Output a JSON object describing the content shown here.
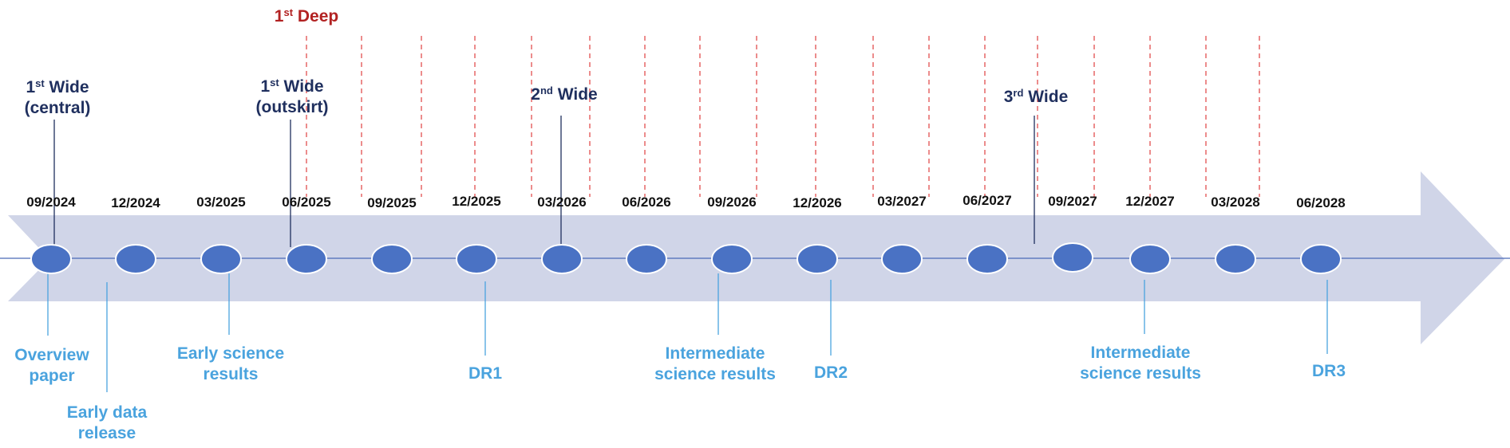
{
  "dates": [
    "09/2024",
    "12/2024",
    "03/2025",
    "06/2025",
    "09/2025",
    "12/2025",
    "03/2026",
    "06/2026",
    "09/2026",
    "12/2026",
    "03/2027",
    "06/2027",
    "09/2027",
    "12/2027",
    "03/2028",
    "06/2028"
  ],
  "deep": {
    "n": "1",
    "sup": "st",
    "label": "Deep"
  },
  "observations": [
    {
      "n": "1",
      "sup": "st",
      "word": "Wide",
      "sub": "(central)"
    },
    {
      "n": "1",
      "sup": "st",
      "word": "Wide",
      "sub": "(outskirt)"
    },
    {
      "n": "2",
      "sup": "nd",
      "word": "Wide",
      "sub": ""
    },
    {
      "n": "3",
      "sup": "rd",
      "word": "Wide",
      "sub": ""
    }
  ],
  "outputs": [
    {
      "line1": "Overview",
      "line2": "paper"
    },
    {
      "line1": "Early data",
      "line2": "release"
    },
    {
      "line1": "Early science",
      "line2": "results"
    },
    {
      "line1": "DR1",
      "line2": ""
    },
    {
      "line1": "Intermediate",
      "line2": "science results"
    },
    {
      "line1": "DR2",
      "line2": ""
    },
    {
      "line1": "Intermediate",
      "line2": "science results"
    },
    {
      "line1": "DR3",
      "line2": ""
    }
  ],
  "colors": {
    "arrow": "#d0d5e8",
    "axis": "#4a6bb8",
    "node": "#4a72c4",
    "node_stroke": "#ffffff",
    "deep_dash": "#e04040",
    "observation_text": "#1f2f5e",
    "output_text": "#4aa3de",
    "deep_text": "#b22222"
  }
}
